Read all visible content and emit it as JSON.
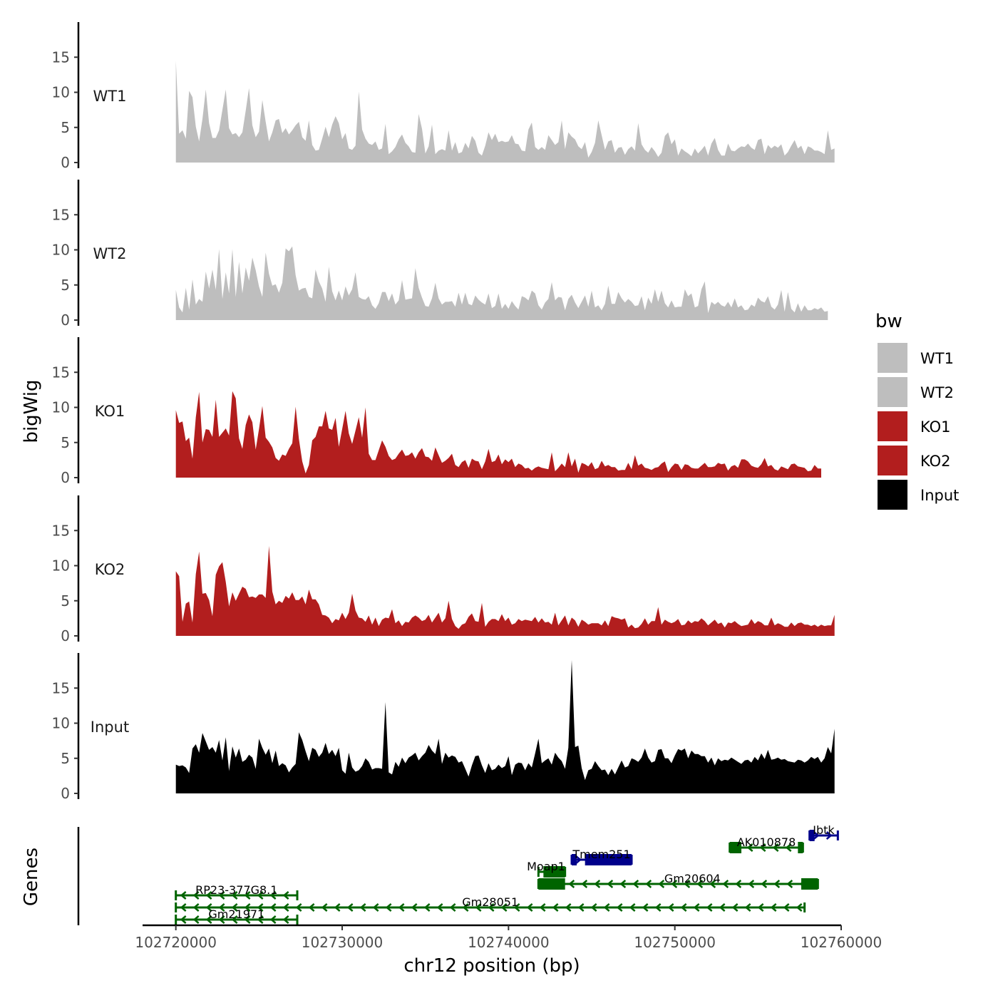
{
  "chart_data": {
    "type": "area",
    "chromosome": "chr12",
    "xlabel": "chr12 position (bp)",
    "ylabel": "bigWig",
    "genes_label": "Genes",
    "xlim": [
      102718000,
      102760000
    ],
    "x_ticks": [
      102720000,
      102730000,
      102740000,
      102750000,
      102760000
    ],
    "x_tick_labels": [
      "102720000",
      "102730000",
      "102740000",
      "102750000",
      "102760000"
    ],
    "ylim": [
      0,
      20
    ],
    "y_ticks": [
      0,
      5,
      10,
      15
    ],
    "y_tick_labels": [
      "0",
      "5",
      "10",
      "15"
    ],
    "bin_size": 200,
    "x_start": 102720000,
    "x_end": 102759800,
    "tracks": [
      {
        "name": "WT1",
        "color": "#bebebe",
        "values": [
          14.5,
          4.1,
          4.6,
          3.4,
          10.2,
          9.3,
          5.1,
          3.0,
          6.2,
          10.4,
          5.6,
          3.5,
          3.5,
          4.6,
          7.5,
          10.4,
          4.9,
          4.0,
          4.2,
          3.6,
          4.3,
          7.4,
          10.6,
          5.3,
          3.6,
          4.4,
          8.9,
          5.8,
          3.0,
          4.3,
          6.0,
          6.2,
          4.2,
          4.9,
          4.0,
          4.6,
          5.3,
          5.8,
          3.6,
          3.1,
          6.0,
          2.5,
          1.7,
          1.8,
          3.4,
          5.1,
          3.6,
          5.4,
          6.6,
          5.6,
          3.3,
          4.2,
          2.0,
          1.8,
          2.4,
          10.1,
          4.7,
          3.4,
          2.7,
          2.5,
          3.0,
          1.8,
          2.0,
          5.5,
          1.2,
          1.6,
          2.2,
          3.3,
          4.0,
          2.8,
          2.3,
          1.5,
          1.4,
          6.9,
          4.8,
          1.3,
          2.3,
          5.4,
          1.2,
          1.7,
          1.9,
          1.7,
          4.6,
          1.7,
          2.9,
          1.3,
          1.5,
          2.8,
          2.0,
          3.8,
          3.1,
          1.4,
          1.0,
          2.4,
          4.3,
          3.2,
          4.1,
          2.9,
          3.1,
          2.9,
          3.0,
          3.9,
          2.7,
          2.6,
          1.7,
          1.6,
          4.7,
          5.7,
          2.2,
          1.8,
          2.2,
          1.8,
          3.9,
          3.2,
          2.5,
          2.9,
          6.0,
          1.9,
          4.3,
          3.7,
          3.3,
          2.3,
          1.9,
          2.9,
          0.7,
          1.5,
          2.8,
          6.0,
          3.9,
          1.8,
          3.0,
          3.2,
          1.4,
          2.1,
          2.2,
          1.1,
          1.9,
          2.3,
          1.7,
          5.6,
          2.6,
          1.8,
          1.4,
          2.2,
          1.6,
          0.8,
          1.4,
          3.8,
          4.3,
          2.6,
          3.3,
          1.0,
          2.0,
          1.6,
          1.3,
          0.9,
          2.0,
          1.3,
          1.8,
          2.4,
          1.0,
          2.7,
          3.5,
          1.8,
          1.0,
          1.0,
          2.7,
          1.7,
          1.6,
          2.0,
          2.3,
          2.2,
          2.7,
          2.1,
          1.8,
          3.2,
          3.4,
          1.2,
          2.5,
          2.0,
          2.4,
          2.1,
          2.6,
          1.0,
          1.5,
          2.4,
          3.2,
          2.0,
          2.4,
          1.2,
          2.3,
          2.1,
          1.7,
          1.7,
          1.5,
          1.2,
          4.6,
          1.8,
          2.0
        ]
      },
      {
        "name": "WT2",
        "color": "#bebebe",
        "values": [
          4.3,
          1.8,
          1.1,
          4.6,
          1.5,
          5.8,
          2.2,
          3.0,
          2.6,
          6.9,
          4.5,
          7.2,
          4.3,
          10.1,
          3.0,
          6.8,
          3.8,
          10.1,
          3.3,
          8.3,
          3.8,
          7.5,
          5.6,
          8.9,
          7.1,
          4.8,
          3.3,
          9.6,
          6.6,
          4.9,
          5.1,
          3.9,
          5.3,
          10.2,
          9.8,
          10.5,
          6.4,
          4.2,
          4.5,
          4.6,
          3.3,
          3.1,
          7.2,
          5.5,
          4.5,
          2.6,
          7.6,
          4.1,
          2.8,
          4.2,
          2.8,
          4.8,
          3.5,
          4.4,
          6.8,
          3.3,
          3.0,
          2.9,
          3.4,
          2.1,
          1.6,
          2.4,
          4.0,
          4.0,
          2.7,
          3.8,
          2.2,
          2.8,
          5.7,
          2.9,
          3.0,
          3.1,
          7.4,
          4.6,
          3.2,
          2.0,
          1.9,
          3.1,
          5.3,
          3.1,
          2.2,
          2.6,
          2.6,
          2.7,
          1.9,
          3.9,
          2.2,
          3.9,
          2.3,
          2.1,
          3.5,
          2.9,
          2.5,
          2.2,
          3.8,
          1.7,
          2.0,
          3.8,
          1.6,
          2.3,
          1.6,
          2.7,
          2.0,
          1.5,
          3.4,
          3.2,
          2.8,
          4.2,
          3.8,
          2.1,
          1.5,
          2.5,
          3.0,
          5.4,
          2.8,
          3.3,
          3.2,
          1.4,
          3.0,
          3.6,
          2.5,
          1.7,
          2.6,
          3.5,
          1.9,
          4.2,
          1.8,
          2.1,
          1.4,
          2.3,
          4.9,
          2.3,
          2.3,
          4.0,
          3.1,
          2.5,
          3.0,
          2.6,
          2.0,
          2.1,
          3.4,
          1.4,
          3.2,
          2.3,
          4.4,
          2.6,
          4.2,
          2.4,
          1.8,
          2.8,
          1.8,
          1.9,
          1.9,
          4.4,
          3.4,
          3.8,
          1.8,
          2.0,
          4.4,
          5.5,
          1.0,
          2.6,
          2.2,
          2.6,
          2.1,
          1.9,
          2.6,
          1.8,
          3.1,
          1.8,
          2.1,
          1.4,
          1.5,
          2.2,
          1.9,
          3.2,
          2.7,
          2.5,
          3.4,
          1.9,
          1.5,
          2.2,
          4.3,
          1.2,
          4.0,
          1.6,
          1.1,
          2.4,
          1.2,
          2.1,
          1.4,
          1.4,
          1.7,
          1.5,
          1.8,
          1.2,
          1.3
        ]
      },
      {
        "name": "KO1",
        "color": "#b21e1e",
        "values": [
          9.6,
          7.8,
          8.0,
          5.2,
          5.7,
          2.7,
          8.6,
          12.2,
          5.0,
          6.9,
          6.8,
          5.8,
          11.1,
          5.8,
          6.4,
          7.0,
          6.0,
          12.3,
          11.3,
          5.6,
          4.1,
          7.5,
          9.0,
          7.9,
          4.0,
          6.9,
          10.2,
          5.7,
          5.1,
          4.3,
          2.8,
          2.4,
          3.3,
          3.1,
          4.1,
          4.9,
          10.1,
          5.5,
          2.3,
          0.6,
          1.8,
          5.3,
          5.8,
          7.3,
          7.3,
          9.5,
          7.0,
          6.8,
          8.5,
          4.4,
          6.9,
          9.5,
          6.3,
          4.8,
          6.7,
          8.6,
          5.7,
          10.0,
          3.4,
          2.5,
          2.5,
          3.9,
          5.3,
          4.4,
          3.1,
          2.5,
          2.7,
          3.4,
          4.0,
          3.1,
          3.2,
          3.6,
          2.7,
          3.6,
          4.2,
          3.0,
          2.9,
          2.4,
          4.3,
          3.2,
          2.1,
          2.4,
          2.8,
          3.4,
          1.8,
          1.5,
          2.2,
          2.5,
          1.4,
          2.7,
          2.4,
          2.3,
          1.2,
          2.3,
          4.1,
          2.2,
          2.4,
          3.3,
          1.9,
          2.6,
          2.2,
          2.7,
          1.5,
          2.0,
          1.8,
          1.3,
          1.4,
          1.0,
          1.4,
          1.6,
          1.4,
          1.3,
          1.2,
          3.6,
          0.9,
          1.4,
          2.0,
          1.5,
          3.6,
          1.6,
          2.7,
          0.7,
          2.1,
          1.9,
          1.6,
          2.2,
          1.2,
          1.4,
          2.4,
          1.6,
          1.8,
          1.5,
          1.5,
          1.0,
          1.1,
          1.1,
          2.1,
          1.2,
          3.2,
          1.7,
          2.0,
          1.4,
          1.3,
          1.1,
          1.4,
          1.5,
          2.0,
          2.3,
          0.8,
          1.5,
          2.0,
          1.9,
          1.1,
          1.9,
          1.8,
          1.4,
          1.3,
          1.3,
          1.7,
          2.1,
          1.5,
          1.5,
          1.6,
          2.1,
          1.9,
          2.0,
          1.0,
          1.6,
          1.8,
          1.4,
          2.6,
          2.6,
          2.3,
          1.7,
          1.5,
          1.4,
          1.9,
          2.8,
          1.6,
          1.8,
          1.2,
          1.0,
          1.6,
          1.4,
          1.2,
          1.9,
          2.0,
          1.6,
          1.5,
          1.4,
          0.9,
          1.0,
          1.8,
          1.3,
          1.3
        ]
      },
      {
        "name": "KO2",
        "color": "#b21e1e",
        "values": [
          9.2,
          8.5,
          2.0,
          4.6,
          4.9,
          1.9,
          8.8,
          12.0,
          6.0,
          6.1,
          5.1,
          2.8,
          8.7,
          9.9,
          10.5,
          7.7,
          4.2,
          6.2,
          5.0,
          6.0,
          7.0,
          6.7,
          5.5,
          5.6,
          5.4,
          5.9,
          5.9,
          5.4,
          12.8,
          6.3,
          4.5,
          5.0,
          4.7,
          5.7,
          5.3,
          6.2,
          5.1,
          5.1,
          5.6,
          4.5,
          6.6,
          5.2,
          5.2,
          4.5,
          3.0,
          2.9,
          2.6,
          1.8,
          2.4,
          2.2,
          3.3,
          2.4,
          3.3,
          6.0,
          3.6,
          2.6,
          2.5,
          2.0,
          2.9,
          1.6,
          2.6,
          1.4,
          2.3,
          2.6,
          2.5,
          3.8,
          1.8,
          2.2,
          1.4,
          2.0,
          1.9,
          2.6,
          2.9,
          2.6,
          2.1,
          2.3,
          3.0,
          1.9,
          2.6,
          3.3,
          1.9,
          2.5,
          5.0,
          2.4,
          1.4,
          1.0,
          1.6,
          1.8,
          2.7,
          3.2,
          2.1,
          2.0,
          4.7,
          1.3,
          2.0,
          2.4,
          2.4,
          2.1,
          3.1,
          2.1,
          2.6,
          1.6,
          1.8,
          2.4,
          2.1,
          2.3,
          2.2,
          2.1,
          2.7,
          1.9,
          2.5,
          1.9,
          2.0,
          1.6,
          3.3,
          1.5,
          2.2,
          2.9,
          1.5,
          2.6,
          2.2,
          1.3,
          2.3,
          2.0,
          1.6,
          1.8,
          1.8,
          1.8,
          1.5,
          2.2,
          1.4,
          2.8,
          2.6,
          2.5,
          2.3,
          2.5,
          1.2,
          1.6,
          1.1,
          1.2,
          1.7,
          2.5,
          1.6,
          2.1,
          2.1,
          4.1,
          1.6,
          2.3,
          2.0,
          1.8,
          2.0,
          2.4,
          1.5,
          1.6,
          2.2,
          1.8,
          2.1,
          2.0,
          2.5,
          2.1,
          1.5,
          1.9,
          2.3,
          1.7,
          1.9,
          1.2,
          1.9,
          1.8,
          2.1,
          1.7,
          1.4,
          1.5,
          1.6,
          2.4,
          1.7,
          2.1,
          1.9,
          1.5,
          1.5,
          2.6,
          1.5,
          1.8,
          1.6,
          1.3,
          1.3,
          1.9,
          1.4,
          1.8,
          1.9,
          1.6,
          1.6,
          1.4,
          1.6,
          1.3,
          1.6,
          1.4,
          1.5,
          1.5,
          3.0
        ]
      },
      {
        "name": "Input",
        "color": "#000000",
        "values": [
          4.1,
          3.9,
          4.0,
          3.7,
          2.9,
          6.4,
          7.0,
          5.8,
          8.6,
          7.4,
          6.2,
          6.6,
          5.8,
          7.6,
          4.7,
          8.0,
          3.2,
          6.7,
          5.1,
          6.4,
          4.5,
          4.8,
          5.5,
          5.1,
          3.5,
          7.8,
          6.5,
          5.5,
          6.4,
          4.3,
          6.1,
          3.9,
          4.3,
          4.0,
          3.0,
          3.7,
          4.2,
          8.7,
          7.6,
          6.0,
          4.6,
          6.5,
          6.2,
          5.2,
          5.8,
          7.2,
          5.6,
          6.2,
          5.3,
          6.5,
          3.3,
          2.8,
          5.8,
          3.7,
          3.1,
          3.3,
          3.9,
          5.0,
          4.5,
          3.4,
          3.6,
          3.6,
          3.5,
          13.0,
          3.0,
          2.7,
          4.5,
          3.8,
          5.1,
          4.3,
          5.1,
          5.4,
          5.8,
          4.7,
          5.3,
          5.8,
          6.9,
          6.1,
          5.6,
          7.8,
          4.2,
          5.8,
          5.1,
          5.4,
          5.2,
          4.4,
          4.6,
          3.5,
          2.4,
          4.0,
          5.3,
          5.4,
          4.0,
          2.9,
          4.3,
          3.3,
          3.5,
          4.1,
          3.6,
          3.9,
          5.3,
          2.6,
          4.1,
          4.4,
          4.3,
          3.3,
          4.3,
          3.7,
          5.7,
          7.8,
          4.3,
          4.7,
          5.0,
          4.1,
          5.8,
          5.1,
          4.6,
          3.5,
          6.5,
          19.0,
          6.6,
          6.8,
          3.6,
          1.9,
          3.3,
          3.5,
          4.6,
          3.9,
          3.3,
          3.4,
          2.6,
          3.5,
          2.7,
          3.7,
          4.7,
          3.7,
          3.9,
          5.0,
          4.8,
          4.5,
          5.1,
          6.4,
          5.1,
          4.4,
          4.6,
          6.2,
          6.3,
          5.0,
          5.0,
          4.3,
          5.4,
          6.3,
          6.1,
          6.4,
          5.0,
          6.1,
          5.6,
          5.6,
          5.3,
          5.3,
          4.4,
          5.1,
          4.0,
          5.0,
          4.6,
          4.8,
          4.7,
          5.1,
          4.8,
          4.5,
          4.2,
          4.7,
          4.8,
          4.4,
          5.2,
          4.7,
          5.7,
          4.9,
          6.2,
          4.8,
          4.9,
          5.1,
          4.8,
          4.9,
          4.6,
          4.5,
          4.4,
          4.8,
          4.7,
          4.4,
          4.7,
          5.2,
          4.9,
          5.2,
          4.4,
          5.0,
          6.6,
          5.7,
          9.2
        ]
      }
    ],
    "legend": {
      "title": "bw",
      "position": "right",
      "entries": [
        {
          "label": "WT1",
          "color": "#bebebe"
        },
        {
          "label": "WT2",
          "color": "#bebebe"
        },
        {
          "label": "KO1",
          "color": "#b21e1e"
        },
        {
          "label": "KO2",
          "color": "#b21e1e"
        },
        {
          "label": "Input",
          "color": "#000000"
        }
      ]
    },
    "genes": [
      {
        "name": "Ibtk",
        "label": "Ibtk",
        "start": 102758100,
        "end": 102759800,
        "strand": "+",
        "row": 1,
        "color": "#00008b",
        "exons": [
          [
            102758100,
            102758400
          ]
        ]
      },
      {
        "name": "AK010878",
        "label": "AK010878",
        "start": 102753300,
        "end": 102757700,
        "strand": "-",
        "row": 2,
        "color": "#006400",
        "exons": [
          [
            102753300,
            102754000
          ],
          [
            102757400,
            102757700
          ]
        ]
      },
      {
        "name": "Tmem251",
        "label": "Tmem251",
        "start": 102743800,
        "end": 102747400,
        "strand": "+",
        "row": 3,
        "color": "#00008b",
        "exons": [
          [
            102743800,
            102744100
          ],
          [
            102744600,
            102747400
          ]
        ]
      },
      {
        "name": "Moap1",
        "label": "Moap1",
        "start": 102741800,
        "end": 102743400,
        "strand": "-",
        "row": 4,
        "color": "#006400",
        "exons": [
          [
            102742100,
            102743400
          ]
        ]
      },
      {
        "name": "Gm20604",
        "label": "Gm20604",
        "start": 102741800,
        "end": 102758600,
        "strand": "-",
        "row": 5,
        "color": "#006400",
        "exons": [
          [
            102741800,
            102743400
          ],
          [
            102757600,
            102758600
          ]
        ]
      },
      {
        "name": "RP23-377G8.1",
        "label": "RP23-377G8.1",
        "start": 102720000,
        "end": 102727300,
        "strand": "-",
        "row": 6,
        "color": "#006400",
        "exons": []
      },
      {
        "name": "Gm28051",
        "label": "Gm28051",
        "start": 102720000,
        "end": 102757800,
        "strand": "-",
        "row": 7,
        "color": "#006400",
        "exons": []
      },
      {
        "name": "Gm21971",
        "label": "Gm21971",
        "start": 102720000,
        "end": 102727300,
        "strand": "-",
        "row": 8,
        "color": "#006400",
        "exons": []
      }
    ]
  }
}
